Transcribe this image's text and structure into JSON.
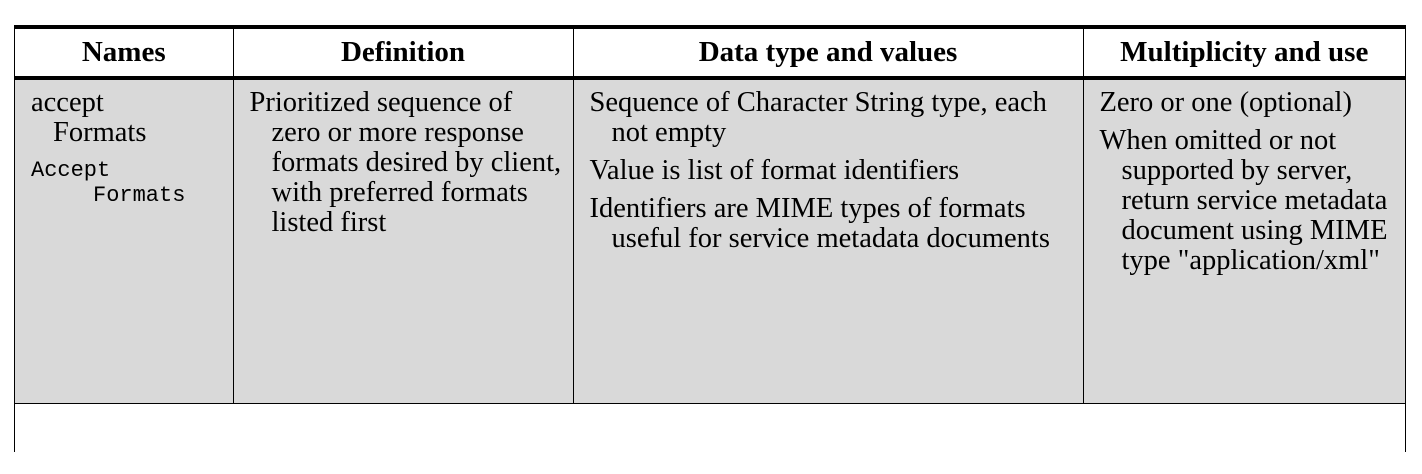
{
  "table": {
    "headers": [
      "Names",
      "Definition",
      "Data type and values",
      "Multiplicity and use"
    ],
    "row": {
      "names": {
        "display_line1": "accept",
        "display_line2": "Formats",
        "code_line1": "Accept",
        "code_line2": "Formats"
      },
      "definition": [
        "Prioritized sequence of zero or more response formats desired by client, with preferred formats listed first"
      ],
      "data_type_values": [
        "Sequence of Character String type, each not empty",
        "Value is list of format identifiers",
        "Identifiers are MIME types of formats useful for service metadata documents"
      ],
      "multiplicity_use": [
        "Zero or one (optional)",
        "When omitted or not supported by server, return service metadata document using MIME type \"application/xml\""
      ]
    }
  }
}
